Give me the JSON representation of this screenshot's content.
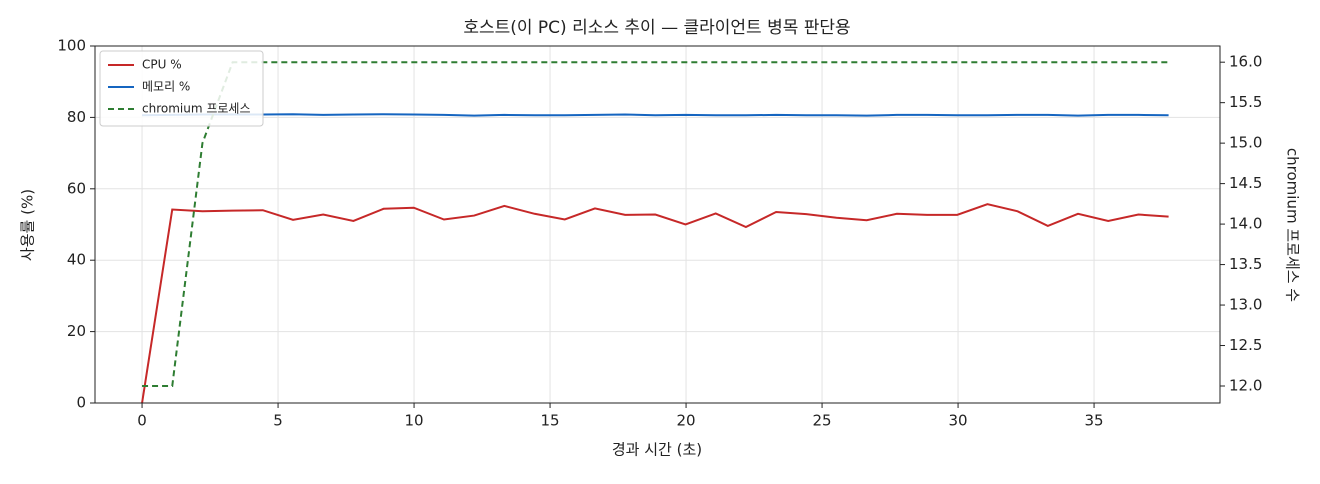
{
  "chart_data": {
    "type": "line",
    "title": "호스트(이 PC) 리소스 추이 — 클라이언트 병목 판단용",
    "xlabel": "경과 시간 (초)",
    "ylabel": "사용률 (%)",
    "y2label": "chromium 프로세스 수",
    "x": [
      0,
      1.11,
      2.22,
      3.33,
      4.44,
      5.55,
      6.66,
      7.77,
      8.88,
      9.99,
      11.1,
      12.21,
      13.32,
      14.43,
      15.54,
      16.65,
      17.76,
      18.87,
      19.98,
      21.09,
      22.2,
      23.31,
      24.42,
      25.53,
      26.64,
      27.75,
      28.86,
      29.97,
      31.08,
      32.19,
      33.3,
      34.41,
      35.52,
      36.63,
      37.74
    ],
    "series": [
      {
        "name": "CPU %",
        "color": "#c62828",
        "values": [
          0,
          54.2,
          53.7,
          53.9,
          54,
          51.3,
          52.8,
          51,
          54.4,
          54.7,
          51.4,
          52.5,
          55.2,
          53,
          51.4,
          54.5,
          52.7,
          52.8,
          50,
          53.1,
          49.3,
          53.5,
          52.9,
          51.9,
          51.2,
          53,
          52.7,
          52.7,
          55.7,
          53.7,
          49.6,
          53,
          51,
          52.8,
          52.2
        ]
      },
      {
        "name": "메모리 %",
        "color": "#1565c0",
        "values": [
          80.6,
          80.7,
          80.8,
          80.8,
          80.8,
          80.9,
          80.7,
          80.8,
          80.9,
          80.8,
          80.7,
          80.5,
          80.7,
          80.6,
          80.6,
          80.7,
          80.8,
          80.6,
          80.7,
          80.6,
          80.6,
          80.7,
          80.6,
          80.6,
          80.5,
          80.7,
          80.7,
          80.6,
          80.6,
          80.7,
          80.7,
          80.5,
          80.7,
          80.7,
          80.6
        ]
      },
      {
        "name": "chromium 프로세스",
        "color": "#2e7d32",
        "dashed": true,
        "axis": "y2",
        "values": [
          12,
          12,
          15,
          16,
          16,
          16,
          16,
          16,
          16,
          16,
          16,
          16,
          16,
          16,
          16,
          16,
          16,
          16,
          16,
          16,
          16,
          16,
          16,
          16,
          16,
          16,
          16,
          16,
          16,
          16,
          16,
          16,
          16,
          16,
          16
        ]
      }
    ],
    "xlim": [
      -1.73,
      39.63
    ],
    "xticks": [
      0,
      5,
      10,
      15,
      20,
      25,
      30,
      35
    ],
    "ylim": [
      0,
      100
    ],
    "yticks": [
      0,
      20,
      40,
      60,
      80,
      100
    ],
    "y2lim": [
      11.79,
      16.2
    ],
    "y2ticks": [
      {
        "value": 12,
        "label": "12.0"
      },
      12.5,
      {
        "value": 13,
        "label": "13.0"
      },
      13.5,
      {
        "value": 14,
        "label": "14.0"
      },
      14.5,
      {
        "value": 15,
        "label": "15.0"
      },
      15.5,
      {
        "value": 16,
        "label": "16.0"
      }
    ],
    "grid": true,
    "legend": "upper left"
  }
}
